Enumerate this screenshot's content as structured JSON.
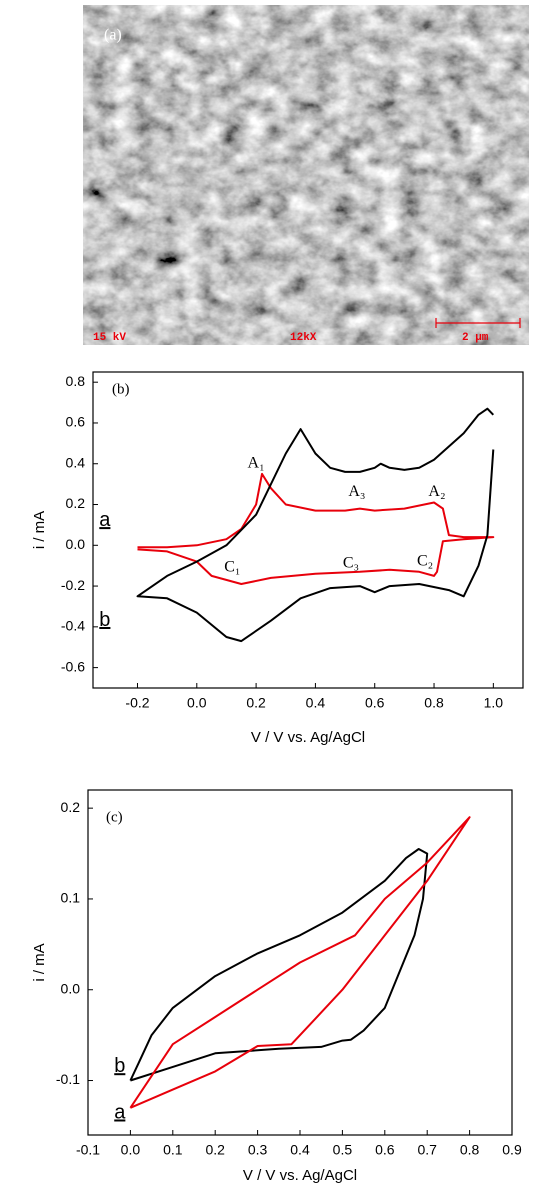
{
  "image": {
    "panel_label": "(a)",
    "voltage": "15 kV",
    "magnification": "12kX",
    "scale_bar": "2 μm"
  },
  "chart_data": [
    {
      "type": "line",
      "panel_label": "(b)",
      "x_label": "V / V vs. Ag/AgCl",
      "y_label": "i / mA",
      "xlim": [
        -0.35,
        1.1
      ],
      "ylim": [
        -0.7,
        0.85
      ],
      "xticks": [
        -0.2,
        {
          "value": 0,
          "label": "0.0"
        },
        0.2,
        0.4,
        0.6,
        0.8,
        {
          "value": 1,
          "label": "1.0"
        }
      ],
      "yticks": [
        -0.6,
        -0.4,
        -0.2,
        {
          "value": 0,
          "label": "0.0"
        },
        0.2,
        0.4,
        0.6,
        0.8
      ],
      "annotations": [
        "A₁",
        "A₃",
        "A₂",
        "C₁",
        "C₃",
        "C₂"
      ],
      "series": [
        {
          "name": "a",
          "color": "#e8000b",
          "x": [
            -0.2,
            -0.1,
            0.0,
            0.1,
            0.15,
            0.2,
            0.22,
            0.25,
            0.3,
            0.4,
            0.5,
            0.55,
            0.6,
            0.7,
            0.8,
            0.83,
            0.85,
            0.9,
            1.0,
            0.9,
            0.83,
            0.81,
            0.8,
            0.75,
            0.65,
            0.55,
            0.4,
            0.25,
            0.15,
            0.05,
            0.0,
            -0.1,
            -0.2
          ],
          "values": [
            -0.01,
            -0.01,
            0.0,
            0.03,
            0.08,
            0.2,
            0.35,
            0.28,
            0.2,
            0.17,
            0.17,
            0.18,
            0.17,
            0.18,
            0.21,
            0.18,
            0.05,
            0.04,
            0.04,
            0.03,
            0.02,
            -0.13,
            -0.15,
            -0.13,
            -0.12,
            -0.13,
            -0.14,
            -0.16,
            -0.19,
            -0.15,
            -0.08,
            -0.03,
            -0.02
          ]
        },
        {
          "name": "b",
          "color": "#000000",
          "x": [
            1.0,
            0.98,
            0.95,
            0.9,
            0.85,
            0.75,
            0.65,
            0.6,
            0.55,
            0.45,
            0.35,
            0.25,
            0.15,
            0.1,
            0.0,
            -0.1,
            -0.2,
            -0.1,
            0.0,
            0.1,
            0.2,
            0.3,
            0.35,
            0.4,
            0.45,
            0.5,
            0.55,
            0.6,
            0.62,
            0.65,
            0.7,
            0.75,
            0.8,
            0.9,
            0.95,
            0.98,
            1.0
          ],
          "values": [
            0.47,
            0.05,
            -0.1,
            -0.25,
            -0.22,
            -0.19,
            -0.2,
            -0.23,
            -0.2,
            -0.21,
            -0.26,
            -0.37,
            -0.47,
            -0.45,
            -0.33,
            -0.26,
            -0.25,
            -0.15,
            -0.08,
            0.0,
            0.15,
            0.45,
            0.57,
            0.45,
            0.38,
            0.36,
            0.36,
            0.38,
            0.4,
            0.38,
            0.37,
            0.38,
            0.42,
            0.55,
            0.64,
            0.67,
            0.64
          ]
        }
      ]
    },
    {
      "type": "line",
      "panel_label": "(c)",
      "x_label": "V / V vs. Ag/AgCl",
      "y_label": "i / mA",
      "xlim": [
        -0.1,
        0.9
      ],
      "ylim": [
        -0.16,
        0.22
      ],
      "xticks": [
        -0.1,
        {
          "value": 0,
          "label": "0.0"
        },
        0.1,
        0.2,
        0.3,
        0.4,
        0.5,
        0.6,
        0.7,
        0.8,
        0.9
      ],
      "yticks": [
        -0.1,
        {
          "value": 0,
          "label": "0.0"
        },
        0.1,
        0.2
      ],
      "series": [
        {
          "name": "b",
          "color": "#000000",
          "x": [
            0.0,
            0.02,
            0.05,
            0.1,
            0.2,
            0.3,
            0.4,
            0.5,
            0.6,
            0.65,
            0.68,
            0.7,
            0.69,
            0.67,
            0.6,
            0.55,
            0.52,
            0.5,
            0.45,
            0.35,
            0.2,
            0.1,
            0.0
          ],
          "values": [
            -0.1,
            -0.08,
            -0.05,
            -0.02,
            0.015,
            0.04,
            0.06,
            0.085,
            0.12,
            0.145,
            0.155,
            0.15,
            0.1,
            0.06,
            -0.02,
            -0.045,
            -0.055,
            -0.056,
            -0.063,
            -0.065,
            -0.07,
            -0.085,
            -0.1
          ]
        },
        {
          "name": "a",
          "color": "#e8000b",
          "x": [
            0.0,
            0.1,
            0.2,
            0.3,
            0.38,
            0.42,
            0.5,
            0.6,
            0.7,
            0.8,
            0.7,
            0.6,
            0.53,
            0.4,
            0.3,
            0.2,
            0.1,
            0.0
          ],
          "values": [
            -0.13,
            -0.11,
            -0.09,
            -0.062,
            -0.06,
            -0.04,
            0.0,
            0.06,
            0.12,
            0.19,
            0.14,
            0.1,
            0.06,
            0.03,
            0.0,
            -0.03,
            -0.06,
            -0.13
          ]
        }
      ]
    }
  ]
}
